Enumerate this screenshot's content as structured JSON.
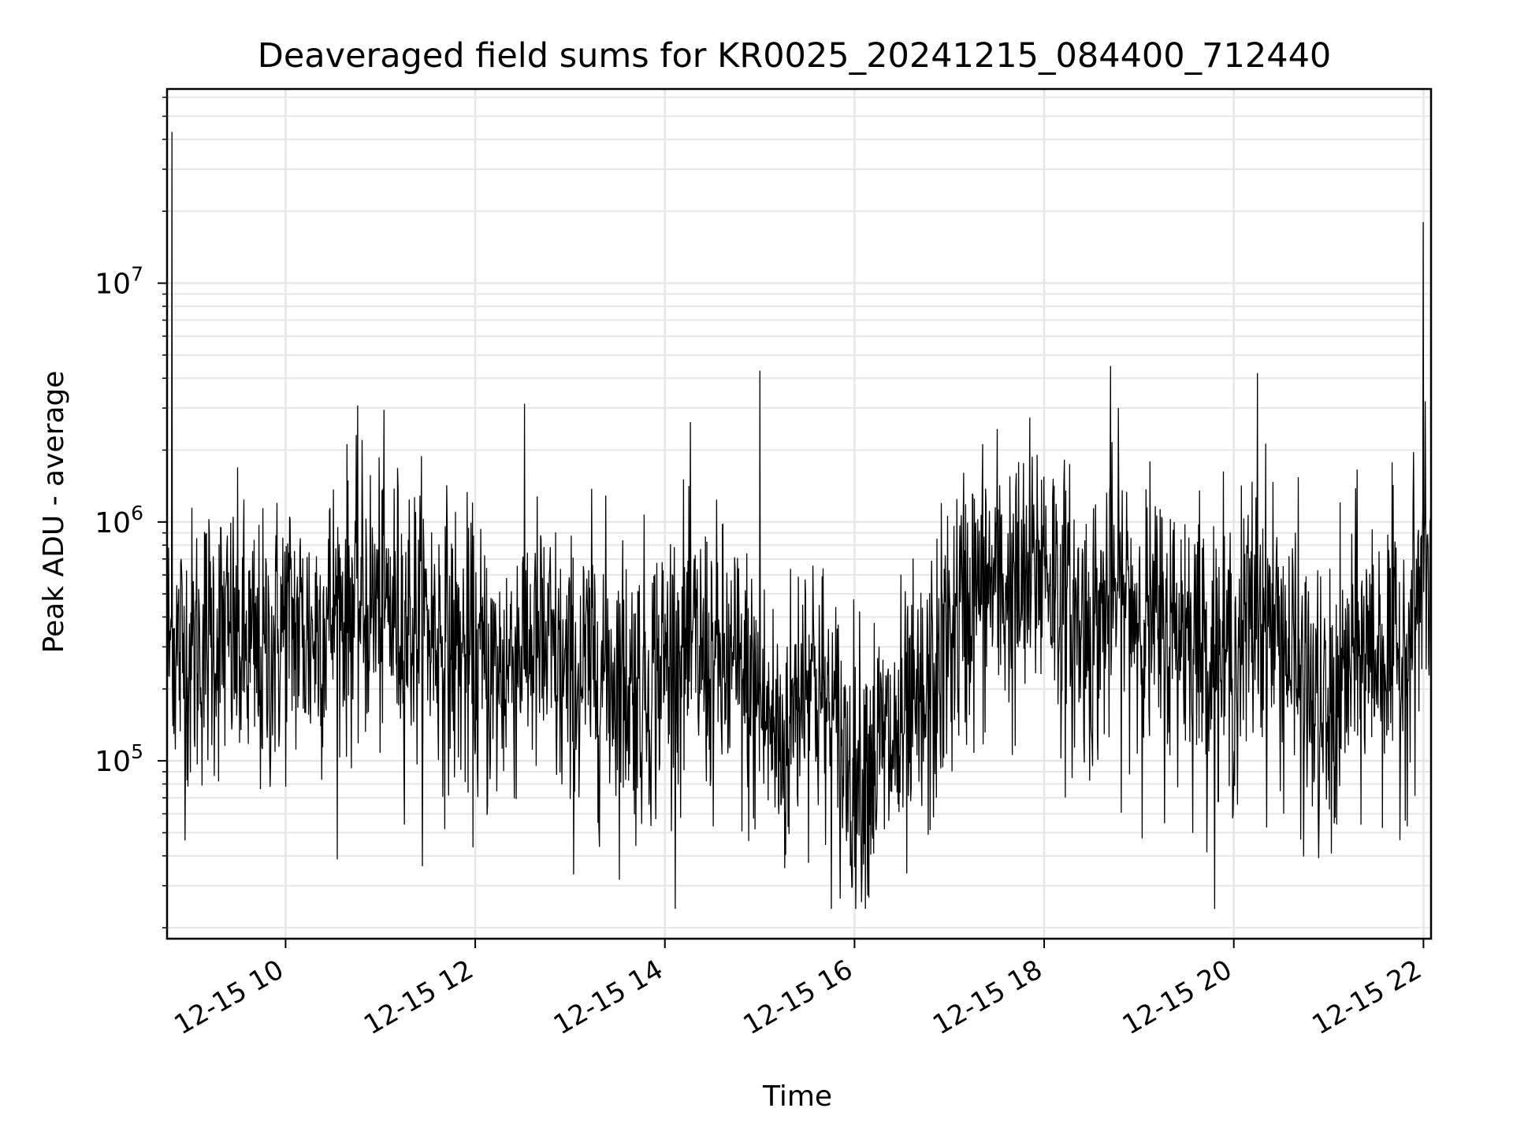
{
  "chart_data": {
    "type": "line",
    "title": "Deaveraged field sums for KR0025_20241215_084400_712440",
    "xlabel": "Time",
    "ylabel": "Peak ADU - average",
    "x_tick_labels": [
      "12-15 10",
      "12-15 12",
      "12-15 14",
      "12-15 16",
      "12-15 18",
      "12-15 20",
      "12-15 22"
    ],
    "x_tick_hours": [
      10,
      12,
      14,
      16,
      18,
      20,
      22
    ],
    "x_range_hours": [
      8.75,
      22.08
    ],
    "y_scale": "log",
    "ylim": [
      18000,
      65000000
    ],
    "y_ticks": [
      {
        "value": 100000,
        "base": "10",
        "exp": "5"
      },
      {
        "value": 1000000,
        "base": "10",
        "exp": "6"
      },
      {
        "value": 10000000,
        "base": "10",
        "exp": "7"
      }
    ],
    "grid": true,
    "line_color": "#000000",
    "grid_color": "#e6e6e6",
    "series": [
      {
        "x": [
          8.75,
          9.0,
          9.25,
          9.5,
          9.75,
          10.0,
          10.25,
          10.5,
          10.75,
          11.0,
          11.25,
          11.5,
          11.75,
          12.0,
          12.25,
          12.5,
          12.75,
          13.0,
          13.25,
          13.5,
          13.75,
          14.0,
          14.25,
          14.5,
          14.75,
          15.0,
          15.25,
          15.5,
          15.75,
          16.0,
          16.25,
          16.5,
          16.75,
          17.0,
          17.25,
          17.5,
          17.75,
          18.0,
          18.25,
          18.5,
          18.75,
          19.0,
          19.25,
          19.5,
          19.75,
          20.0,
          20.25,
          20.5,
          20.75,
          21.0,
          21.25,
          21.5,
          21.75,
          22.0,
          22.08
        ],
        "y": [
          300000,
          280000,
          350000,
          300000,
          250000,
          380000,
          330000,
          420000,
          470000,
          440000,
          400000,
          370000,
          300000,
          250000,
          220000,
          330000,
          280000,
          200000,
          260000,
          230000,
          200000,
          260000,
          300000,
          250000,
          230000,
          170000,
          110000,
          280000,
          140000,
          90000,
          110000,
          120000,
          160000,
          330000,
          500000,
          560000,
          470000,
          750000,
          400000,
          350000,
          500000,
          430000,
          330000,
          380000,
          280000,
          260000,
          450000,
          330000,
          200000,
          130000,
          270000,
          300000,
          260000,
          550000,
          600000
        ],
        "notable": [
          {
            "x": 8.8,
            "y": 43000000
          },
          {
            "x": 15.0,
            "y": 4300000
          },
          {
            "x": 18.7,
            "y": 4500000
          },
          {
            "x": 20.25,
            "y": 4200000
          },
          {
            "x": 22.0,
            "y": 18000000
          }
        ]
      }
    ]
  }
}
